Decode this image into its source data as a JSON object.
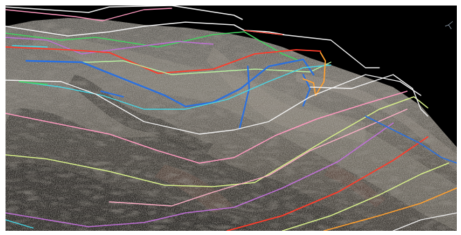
{
  "scene": {
    "type": "3D point cloud terrain with contour/profile lines",
    "background_color": "#000000",
    "terrain_colors": [
      "#8a8a86",
      "#6f6b63",
      "#a6a29a",
      "#4d4a44",
      "#7a5a4a"
    ],
    "line_colors": {
      "white": "#f2f2f2",
      "pink": "#ff9ac0",
      "yellow_green": "#d8f08a",
      "red": "#ff3b2a",
      "purple": "#c070d8",
      "cyan": "#46d8e8",
      "green": "#44d060",
      "blue": "#2a70e0",
      "orange": "#ffa030",
      "light_pink": "#ffb0c8",
      "light_green": "#b8f0a0"
    },
    "axis_gizmo_icon": "axis-triad-icon"
  }
}
